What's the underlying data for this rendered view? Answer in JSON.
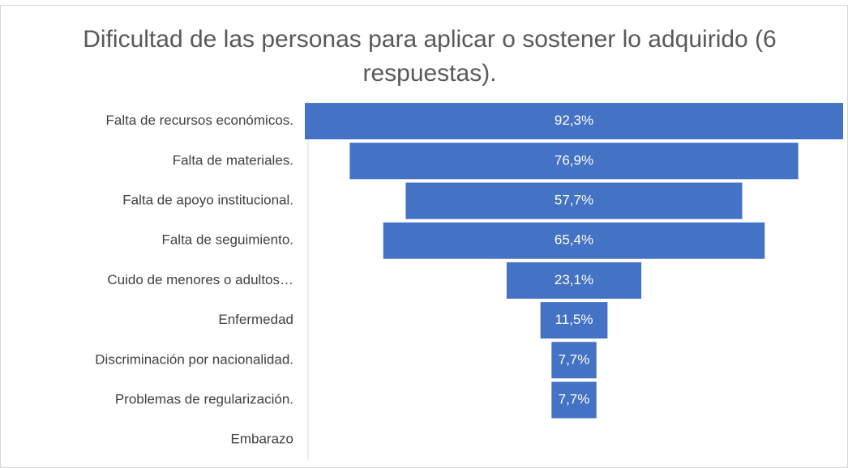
{
  "chart_data": {
    "type": "funnel",
    "title": "Dificultad  de las personas para aplicar o sostener lo adquirido (6 respuestas).",
    "categories": [
      "Falta de recursos económicos.",
      "Falta de materiales.",
      "Falta de apoyo institucional.",
      "Falta de seguimiento.",
      "Cuido de menores o adultos…",
      "Enfermedad",
      "Discriminación por nacionalidad.",
      "Problemas de regularización.",
      "Embarazo"
    ],
    "values": [
      92.3,
      76.9,
      57.7,
      65.4,
      23.1,
      11.5,
      7.7,
      7.7,
      0
    ],
    "value_labels": [
      "92,3%",
      "76,9%",
      "57,7%",
      "65,4%",
      "23,1%",
      "11,5%",
      "7,7%",
      "7,7%",
      null
    ],
    "color": "#4472c4"
  }
}
